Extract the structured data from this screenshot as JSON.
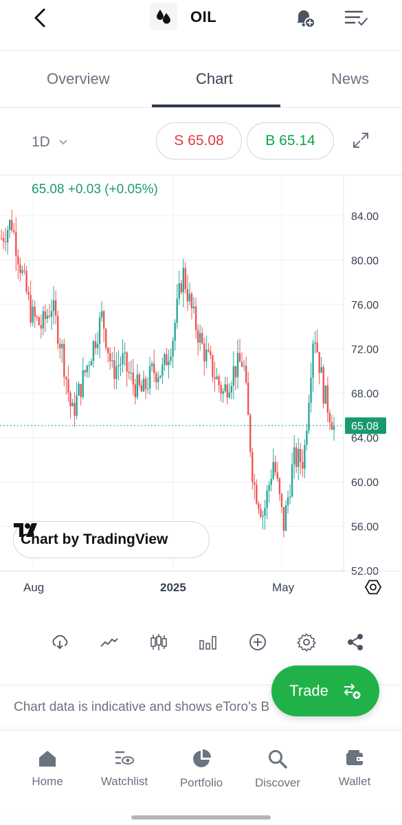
{
  "header": {
    "title": "OIL",
    "icons": [
      "back-arrow-icon",
      "oil-drop-icon",
      "bell-plus-icon",
      "list-check-icon"
    ]
  },
  "tabs": [
    {
      "label": "Overview",
      "active": false
    },
    {
      "label": "Chart",
      "active": true
    },
    {
      "label": "News",
      "active": false
    }
  ],
  "controls": {
    "interval": "1D",
    "sell_label": "S 65.08",
    "buy_label": "B 65.14"
  },
  "chart": {
    "price_readout": "65.08  +0.03 (+0.05%)",
    "current_price_label": "65.08",
    "watermark": "Chart by TradingView"
  },
  "chart_data": {
    "type": "candlestick",
    "y_ticks": [
      "84.00",
      "80.00",
      "76.00",
      "72.00",
      "68.00",
      "64.00",
      "60.00",
      "56.00",
      "52.00"
    ],
    "x_ticks": [
      "Aug",
      "2025",
      "May"
    ],
    "ylim": [
      52,
      84
    ],
    "current_price": 65.08,
    "grid": true,
    "colors": {
      "up": "#26a69a",
      "down": "#ef5350",
      "price_line": "#26a69a"
    },
    "approx_close_path": [
      [
        "Jul",
        82
      ],
      [
        "Jul",
        83.5
      ],
      [
        "Jul",
        79
      ],
      [
        "Jul",
        75
      ],
      [
        "Aug",
        74
      ],
      [
        "Aug",
        76
      ],
      [
        "Aug",
        72
      ],
      [
        "Sep",
        66
      ],
      [
        "Sep",
        69
      ],
      [
        "Sep",
        72
      ],
      [
        "Sep",
        75
      ],
      [
        "Oct",
        70
      ],
      [
        "Oct",
        71
      ],
      [
        "Oct",
        69
      ],
      [
        "Nov",
        68
      ],
      [
        "Nov",
        70
      ],
      [
        "Dec",
        70
      ],
      [
        "Dec",
        73
      ],
      [
        "Jan",
        79
      ],
      [
        "Jan",
        75
      ],
      [
        "Feb",
        72
      ],
      [
        "Feb",
        70
      ],
      [
        "Mar",
        68
      ],
      [
        "Mar",
        70
      ],
      [
        "Apr",
        71
      ],
      [
        "Apr",
        60
      ],
      [
        "Apr",
        57
      ],
      [
        "May",
        62
      ],
      [
        "May",
        56
      ],
      [
        "May",
        62
      ],
      [
        "Jun",
        62
      ],
      [
        "Jun",
        74
      ],
      [
        "Jun",
        68
      ],
      [
        "Jun",
        65.08
      ]
    ]
  },
  "toolbar": {
    "icons": [
      "cloud-download-icon",
      "line-chart-icon",
      "candlestick-icon",
      "bar-chart-icon",
      "plus-circle-icon",
      "gear-icon",
      "share-icon"
    ]
  },
  "disclaimer": "Chart data is indicative and shows eToro's B",
  "trade": {
    "label": "Trade"
  },
  "bottom_nav": [
    {
      "label": "Home",
      "icon": "home-icon"
    },
    {
      "label": "Watchlist",
      "icon": "watchlist-icon"
    },
    {
      "label": "Portfolio",
      "icon": "pie-chart-icon"
    },
    {
      "label": "Discover",
      "icon": "search-icon"
    },
    {
      "label": "Wallet",
      "icon": "wallet-icon"
    }
  ]
}
